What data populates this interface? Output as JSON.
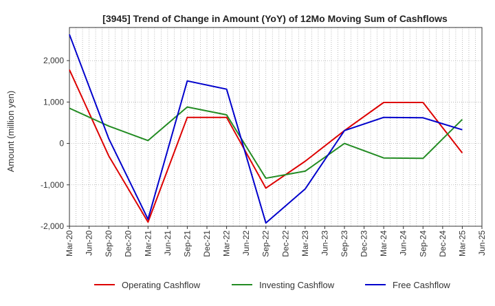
{
  "chart_data": {
    "type": "line",
    "title": "[3945]  Trend of Change in Amount (YoY) of 12Mo Moving Sum of Cashflows",
    "xlabel": "",
    "ylabel": "Amount (million yen)",
    "ylim": [
      -2000,
      2800
    ],
    "yticks": [
      -2000,
      -1000,
      0,
      1000,
      2000
    ],
    "ytick_labels": [
      "-2,000",
      "-1,000",
      "0",
      "1,000",
      "2,000"
    ],
    "categories": [
      "Mar-20",
      "Jun-20",
      "Sep-20",
      "Dec-20",
      "Mar-21",
      "Jun-21",
      "Sep-21",
      "Dec-21",
      "Mar-22",
      "Jun-22",
      "Sep-22",
      "Dec-22",
      "Mar-23",
      "Jun-23",
      "Sep-23",
      "Dec-23",
      "Mar-24",
      "Jun-24",
      "Sep-24",
      "Dec-24",
      "Mar-25",
      "Jun-25"
    ],
    "grid": true,
    "legend_position": "bottom",
    "series": [
      {
        "name": "Operating Cashflow",
        "color": "#dd0000",
        "points": [
          {
            "x": "Mar-20",
            "y": 1780
          },
          {
            "x": "Sep-20",
            "y": -300
          },
          {
            "x": "Mar-21",
            "y": -1900
          },
          {
            "x": "Sep-21",
            "y": 630
          },
          {
            "x": "Mar-22",
            "y": 630
          },
          {
            "x": "Sep-22",
            "y": -1080
          },
          {
            "x": "Mar-23",
            "y": -430
          },
          {
            "x": "Sep-23",
            "y": 310
          },
          {
            "x": "Mar-24",
            "y": 990
          },
          {
            "x": "Sep-24",
            "y": 990
          },
          {
            "x": "Mar-25",
            "y": -230
          }
        ]
      },
      {
        "name": "Investing Cashflow",
        "color": "#228b22",
        "points": [
          {
            "x": "Mar-20",
            "y": 850
          },
          {
            "x": "Sep-20",
            "y": 420
          },
          {
            "x": "Mar-21",
            "y": 70
          },
          {
            "x": "Sep-21",
            "y": 880
          },
          {
            "x": "Mar-22",
            "y": 690
          },
          {
            "x": "Sep-22",
            "y": -840
          },
          {
            "x": "Mar-23",
            "y": -670
          },
          {
            "x": "Sep-23",
            "y": 0
          },
          {
            "x": "Mar-24",
            "y": -350
          },
          {
            "x": "Sep-24",
            "y": -360
          },
          {
            "x": "Mar-25",
            "y": 580
          }
        ]
      },
      {
        "name": "Free Cashflow",
        "color": "#0000cc",
        "points": [
          {
            "x": "Mar-20",
            "y": 2630
          },
          {
            "x": "Sep-20",
            "y": 120
          },
          {
            "x": "Mar-21",
            "y": -1830
          },
          {
            "x": "Sep-21",
            "y": 1510
          },
          {
            "x": "Mar-22",
            "y": 1310
          },
          {
            "x": "Sep-22",
            "y": -1920
          },
          {
            "x": "Mar-23",
            "y": -1100
          },
          {
            "x": "Sep-23",
            "y": 310
          },
          {
            "x": "Mar-24",
            "y": 630
          },
          {
            "x": "Sep-24",
            "y": 620
          },
          {
            "x": "Mar-25",
            "y": 330
          }
        ]
      }
    ]
  }
}
